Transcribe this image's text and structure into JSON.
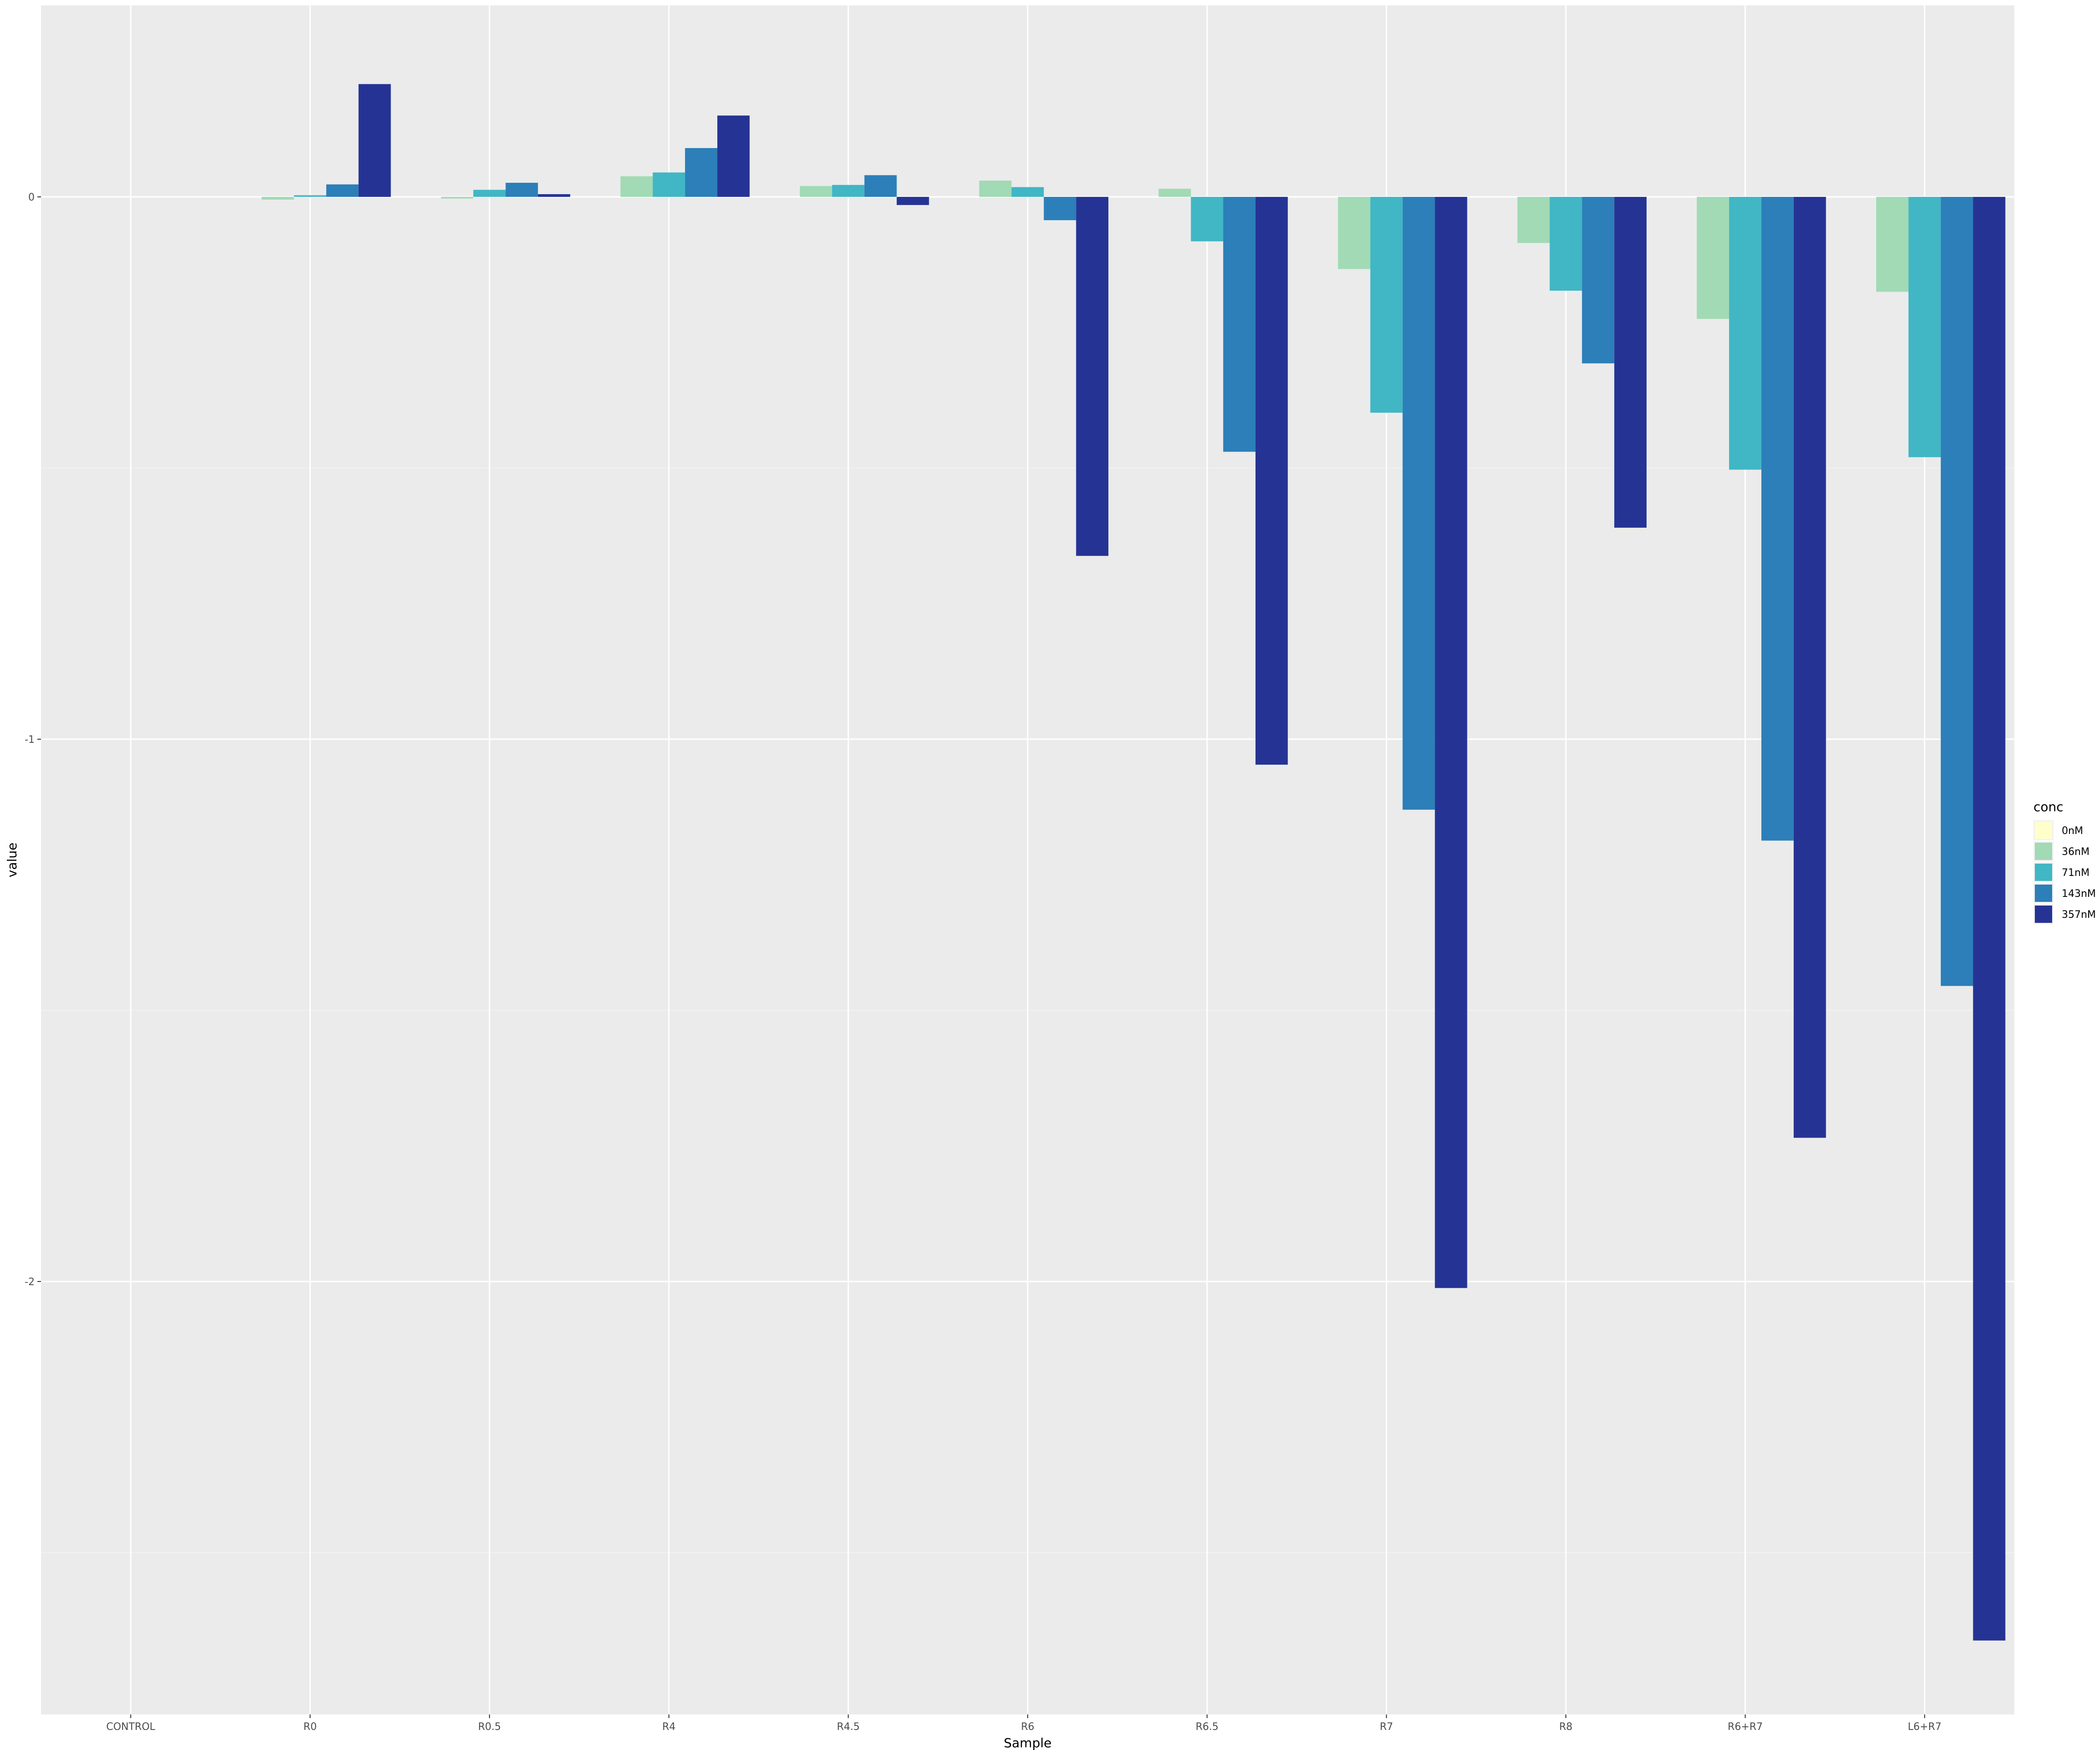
{
  "chart_data": {
    "type": "bar",
    "xlabel": "Sample",
    "ylabel": "value",
    "categories": [
      "CONTROL",
      "R0",
      "R0.5",
      "R4",
      "R4.5",
      "R6",
      "R6.5",
      "R7",
      "R8",
      "R6+R7",
      "L6+R7"
    ],
    "y_ticks": [
      0,
      -1,
      -2
    ],
    "ylim": [
      -2.8,
      0.35
    ],
    "grid": true,
    "legend": {
      "title": "conc",
      "position": "right"
    },
    "series": [
      {
        "name": "0nM",
        "color": "#ffffcc",
        "values": [
          0,
          0,
          0,
          0,
          0,
          0,
          0,
          0,
          0,
          0,
          0
        ]
      },
      {
        "name": "36nM",
        "color": "#a1dab4",
        "values": [
          0,
          -0.005,
          -0.003,
          0.038,
          0.02,
          0.03,
          0.015,
          -0.133,
          -0.085,
          -0.225,
          -0.175
        ]
      },
      {
        "name": "71nM",
        "color": "#41b6c4",
        "values": [
          0,
          0.003,
          0.013,
          0.045,
          0.022,
          0.018,
          -0.082,
          -0.398,
          -0.173,
          -0.503,
          -0.48
        ]
      },
      {
        "name": "143nM",
        "color": "#2c7fb8",
        "values": [
          0,
          0.023,
          0.026,
          0.09,
          0.04,
          -0.043,
          -0.47,
          -1.13,
          -0.307,
          -1.187,
          -1.455
        ]
      },
      {
        "name": "357nM",
        "color": "#253494",
        "values": [
          0,
          0.208,
          0.005,
          0.15,
          -0.015,
          -0.662,
          -1.047,
          -2.012,
          -0.61,
          -1.735,
          -2.662
        ]
      }
    ]
  }
}
